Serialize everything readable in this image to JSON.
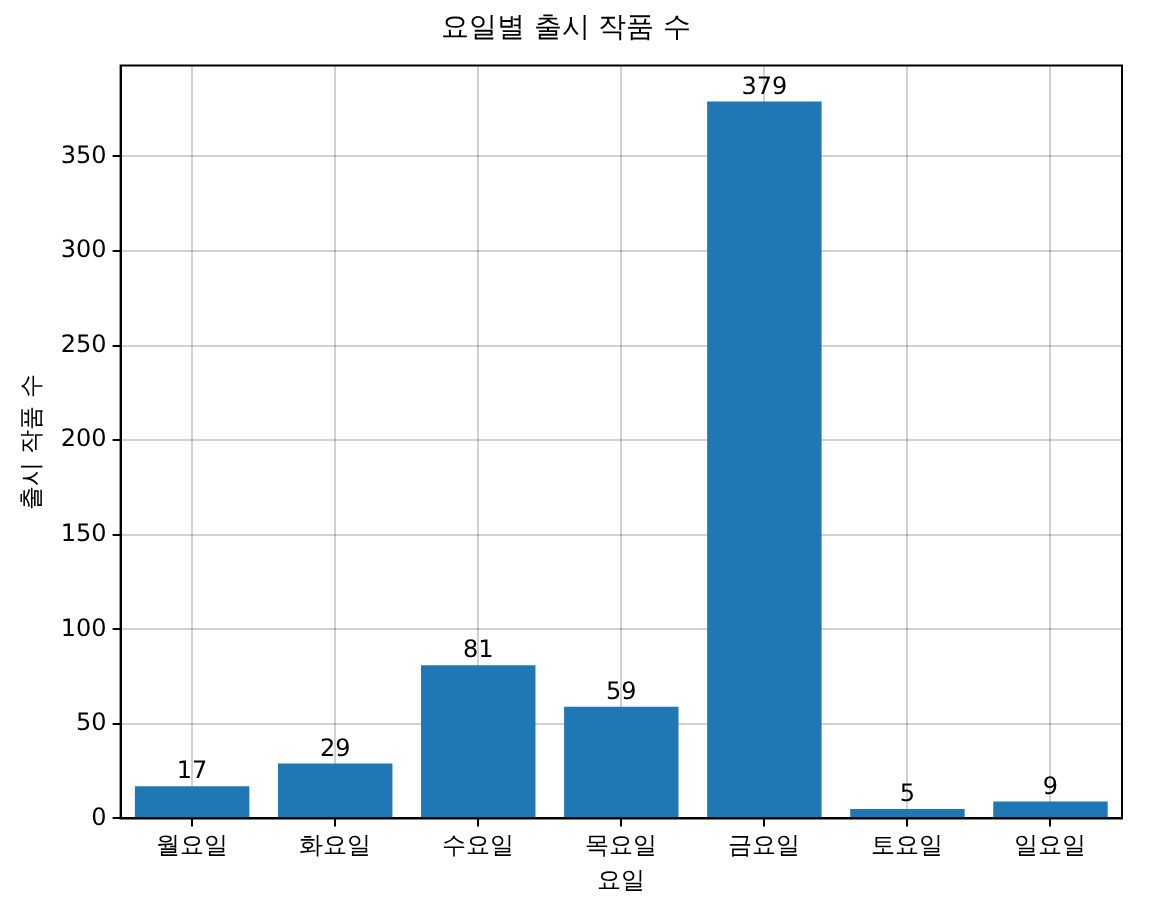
{
  "chart_data": {
    "type": "bar",
    "title": "요일별 출시 작품 수",
    "xlabel": "요일",
    "ylabel": "출시 작품 수",
    "categories": [
      "월요일",
      "화요일",
      "수요일",
      "목요일",
      "금요일",
      "토요일",
      "일요일"
    ],
    "values": [
      17,
      29,
      81,
      59,
      379,
      5,
      9
    ],
    "color": "#1f77b4",
    "ylim": [
      0,
      398
    ],
    "yticks": [
      0,
      50,
      100,
      150,
      200,
      250,
      300,
      350
    ],
    "grid": true,
    "data_labels": true
  }
}
